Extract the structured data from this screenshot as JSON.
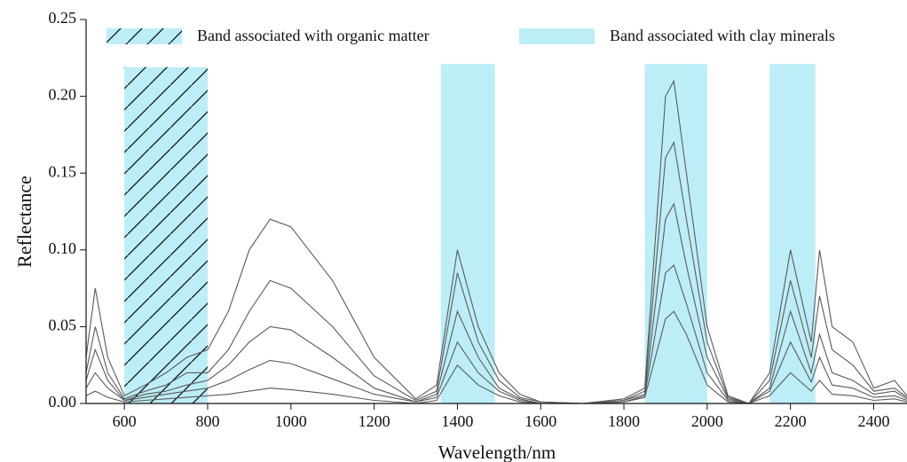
{
  "chart_data": {
    "type": "line",
    "x_label": "Wavelength/nm",
    "y_label": "Reflectance",
    "x": [
      508,
      530,
      560,
      600,
      650,
      700,
      750,
      800,
      850,
      900,
      950,
      1000,
      1100,
      1200,
      1300,
      1350,
      1400,
      1450,
      1500,
      1550,
      1600,
      1700,
      1800,
      1850,
      1900,
      1920,
      1950,
      2000,
      2050,
      2100,
      2150,
      2200,
      2250,
      2270,
      2300,
      2350,
      2400,
      2450,
      2480
    ],
    "series": [
      {
        "color": "#5a5a5a",
        "values": [
          0.03,
          0.075,
          0.03,
          0.005,
          0.012,
          0.02,
          0.03,
          0.035,
          0.06,
          0.1,
          0.12,
          0.115,
          0.08,
          0.03,
          0.003,
          0.012,
          0.1,
          0.05,
          0.02,
          0.006,
          0.001,
          0.0,
          0.003,
          0.01,
          0.2,
          0.21,
          0.15,
          0.05,
          0.005,
          0.0,
          0.02,
          0.1,
          0.04,
          0.1,
          0.05,
          0.04,
          0.01,
          0.015,
          0.005
        ]
      },
      {
        "color": "#5a5a5a",
        "values": [
          0.02,
          0.05,
          0.02,
          0.003,
          0.008,
          0.012,
          0.02,
          0.02,
          0.035,
          0.06,
          0.08,
          0.075,
          0.05,
          0.018,
          0.002,
          0.008,
          0.085,
          0.04,
          0.015,
          0.004,
          0.001,
          0.0,
          0.002,
          0.008,
          0.16,
          0.17,
          0.12,
          0.04,
          0.004,
          0.0,
          0.015,
          0.08,
          0.03,
          0.07,
          0.035,
          0.025,
          0.008,
          0.01,
          0.004
        ]
      },
      {
        "color": "#5a5a5a",
        "values": [
          0.015,
          0.035,
          0.015,
          0.002,
          0.006,
          0.008,
          0.012,
          0.015,
          0.025,
          0.04,
          0.05,
          0.048,
          0.03,
          0.01,
          0.001,
          0.006,
          0.06,
          0.03,
          0.01,
          0.003,
          0.0,
          0.0,
          0.002,
          0.006,
          0.12,
          0.13,
          0.09,
          0.03,
          0.003,
          0.0,
          0.01,
          0.06,
          0.02,
          0.045,
          0.02,
          0.015,
          0.006,
          0.008,
          0.003
        ]
      },
      {
        "color": "#5a5a5a",
        "values": [
          0.01,
          0.02,
          0.01,
          0.002,
          0.004,
          0.006,
          0.008,
          0.01,
          0.015,
          0.022,
          0.028,
          0.026,
          0.016,
          0.006,
          0.001,
          0.004,
          0.04,
          0.02,
          0.008,
          0.002,
          0.0,
          0.0,
          0.001,
          0.005,
          0.085,
          0.09,
          0.065,
          0.02,
          0.002,
          0.0,
          0.008,
          0.04,
          0.014,
          0.03,
          0.012,
          0.01,
          0.004,
          0.005,
          0.002
        ]
      },
      {
        "color": "#5a5a5a",
        "values": [
          0.005,
          0.008,
          0.004,
          0.001,
          0.002,
          0.003,
          0.004,
          0.005,
          0.006,
          0.008,
          0.01,
          0.009,
          0.006,
          0.002,
          0.0,
          0.002,
          0.025,
          0.012,
          0.005,
          0.001,
          0.0,
          0.0,
          0.001,
          0.004,
          0.055,
          0.06,
          0.045,
          0.012,
          0.001,
          0.0,
          0.005,
          0.02,
          0.008,
          0.015,
          0.006,
          0.005,
          0.002,
          0.003,
          0.001
        ]
      }
    ],
    "bands": [
      {
        "label": "Band associated with organic matter",
        "color": "#bdeef8",
        "hatch": true,
        "ranges": [
          [
            600,
            800,
            0.219
          ]
        ]
      },
      {
        "label": "Band associated with clay minerals",
        "color": "#bdeef8",
        "hatch": false,
        "ranges": [
          [
            1360,
            1490,
            0.221
          ],
          [
            1850,
            2000,
            0.221
          ],
          [
            2150,
            2260,
            0.221
          ]
        ]
      }
    ],
    "xlim": [
      508,
      2480
    ],
    "ylim": [
      0,
      0.25
    ],
    "xticks": [
      600,
      800,
      1000,
      1200,
      1400,
      1600,
      1800,
      2000,
      2200,
      2400
    ],
    "yticks": [
      {
        "value": 0,
        "label": "0.00"
      },
      {
        "value": 0.05,
        "label": "0.05"
      },
      {
        "value": 0.1,
        "label": "0.10"
      },
      {
        "value": 0.15,
        "label": "0.15"
      },
      {
        "value": 0.2,
        "label": "0.20"
      },
      {
        "value": 0.25,
        "label": "0.25"
      }
    ]
  }
}
